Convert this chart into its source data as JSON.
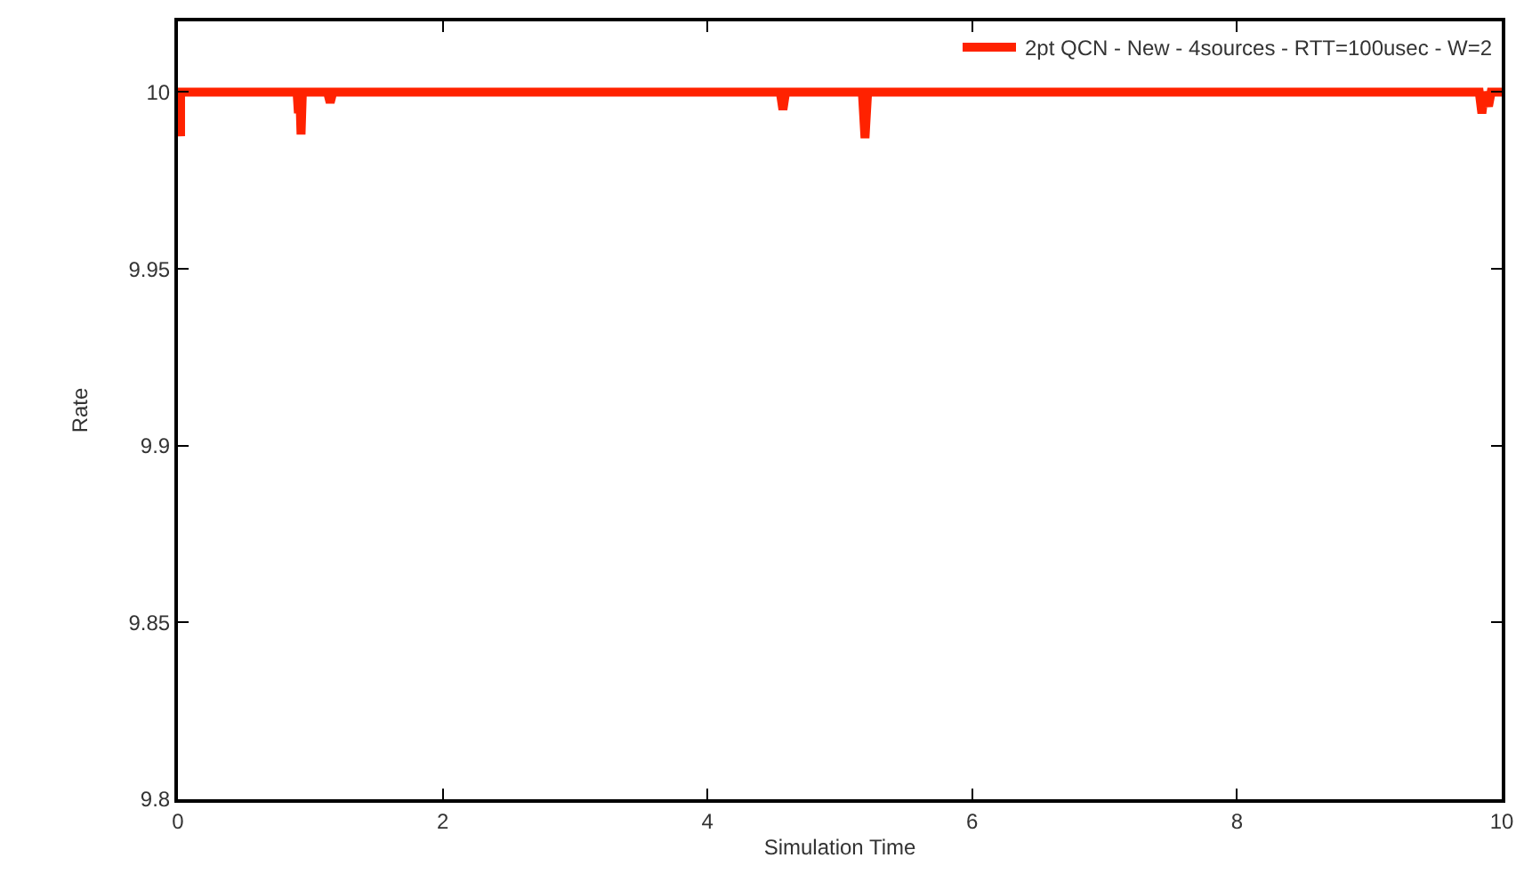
{
  "chart_data": {
    "type": "line",
    "xlabel": "Simulation Time",
    "ylabel": "Rate",
    "xlim": [
      0,
      10
    ],
    "xticks": [
      0,
      2,
      4,
      6,
      8,
      10
    ],
    "ylim": [
      9.8,
      10.02
    ],
    "yticks": [
      9.8,
      9.85,
      9.9,
      9.95,
      10
    ],
    "legend": "top right",
    "marker": "none",
    "line_style": "solid",
    "series": [
      {
        "name": "2pt QCN - New - 4sources - RTT=100usec - W=2",
        "color": "#ff2200",
        "x": [
          0,
          0.02,
          0.02,
          0.04,
          0.9,
          0.91,
          0.92,
          0.93,
          0.94,
          0.95,
          1.13,
          1.15,
          1.17,
          4.55,
          4.57,
          4.59,
          5.17,
          5.19,
          5.21,
          9.83,
          9.85,
          9.87,
          9.9,
          9.92,
          10
        ],
        "values": [
          10,
          9.9875,
          10,
          10,
          10,
          9.994,
          10,
          9.988,
          10,
          10,
          10,
          9.997,
          10,
          10,
          9.995,
          10,
          10,
          9.987,
          10,
          10,
          9.994,
          10,
          9.996,
          10,
          10
        ]
      }
    ]
  }
}
